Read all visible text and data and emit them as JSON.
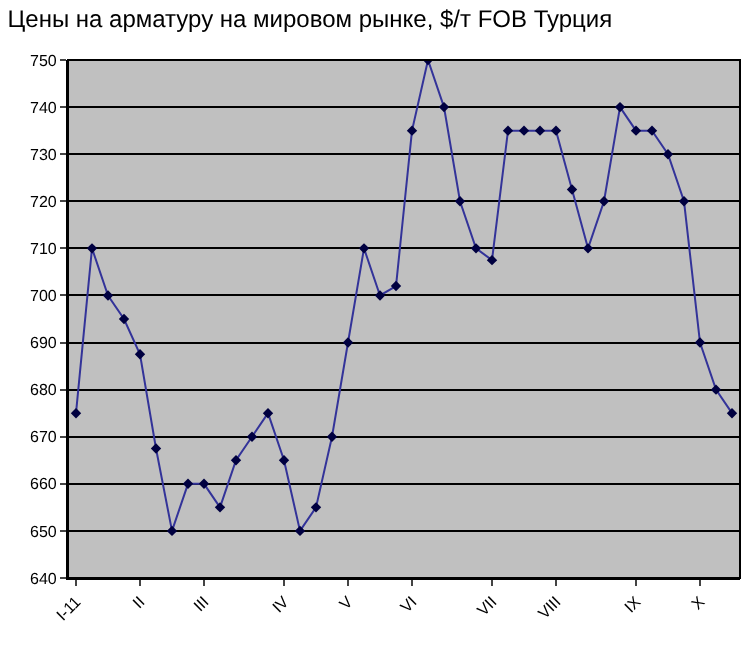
{
  "chart_data": {
    "type": "line",
    "title": "Цены на арматуру на мировом рынке, $/т FOB Турция",
    "categories": [
      "I-11",
      null,
      null,
      null,
      "II",
      null,
      null,
      null,
      "III",
      null,
      null,
      null,
      null,
      "IV",
      null,
      null,
      null,
      "V",
      null,
      null,
      null,
      "VI",
      null,
      null,
      null,
      null,
      "VII",
      null,
      null,
      null,
      "VIII",
      null,
      null,
      null,
      null,
      "IX",
      null,
      null,
      null,
      "X",
      null,
      null
    ],
    "series": [
      {
        "color": "#333399",
        "values": [
          675,
          710,
          700,
          695,
          687.5,
          667.5,
          650,
          660,
          660,
          655,
          665,
          670,
          675,
          665,
          650,
          655,
          670,
          690,
          710,
          700,
          702,
          735,
          750,
          740,
          720,
          710,
          707.5,
          735,
          735,
          735,
          735,
          722.5,
          710,
          720,
          740,
          735,
          735,
          730,
          720,
          690,
          680,
          675
        ]
      }
    ],
    "ylim": [
      640,
      750
    ],
    "yticks": [
      640,
      650,
      660,
      670,
      680,
      690,
      700,
      710,
      720,
      730,
      740,
      750
    ],
    "grid": "y",
    "marker": "diamond",
    "line_style": "solid",
    "legend": false
  }
}
